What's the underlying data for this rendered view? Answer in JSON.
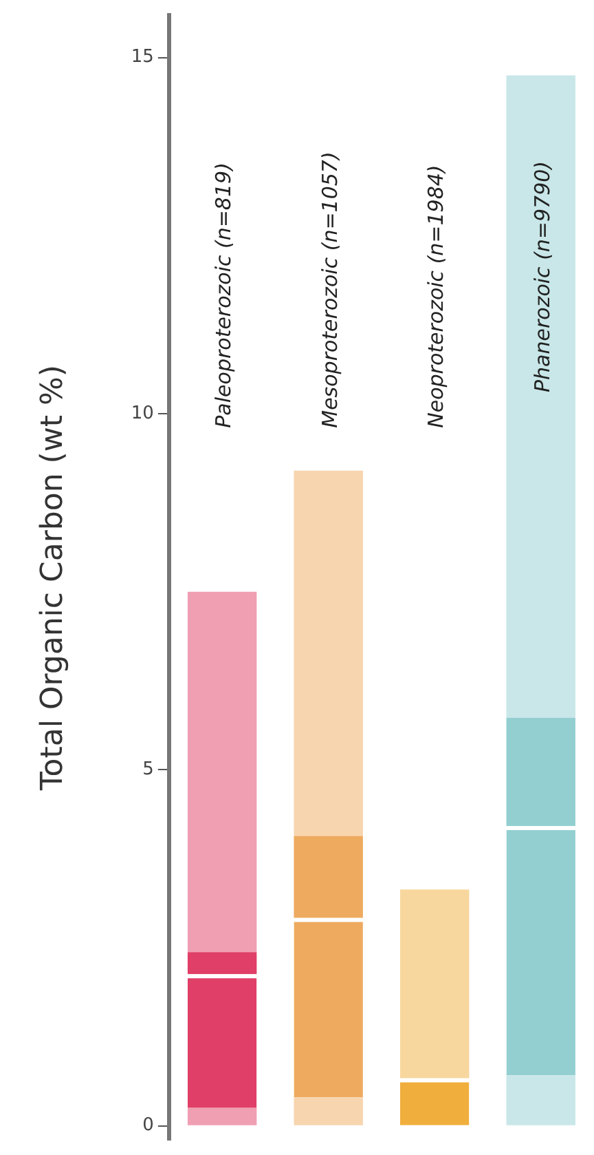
{
  "chart_data": {
    "type": "bar",
    "stacked": true,
    "ylabel": "Total Organic Carbon (wt %)",
    "categories": [
      "Paleoproterozoic (n=819)",
      "Mesoproterozoic (n=1057)",
      "Neoproterozoic (n=1984)",
      "Phanerozoic (n=9790)"
    ],
    "series": [
      {
        "colors": [
          "#f09fb3",
          "#f7d5af",
          "#f8d79e",
          "#c9e7e8"
        ],
        "values": [
          0.25,
          0.4,
          0,
          0.71
        ]
      },
      {
        "colors": [
          "#e03f67",
          "#eeaa5e",
          "#f0ae3c",
          "#93cfd1"
        ],
        "values": [
          1.88,
          2.52,
          0.67,
          3.5
        ]
      },
      {
        "colors": [
          "#e03f67",
          "#eeaa5e",
          "#f0ae3c",
          "#93cfd1"
        ],
        "values": [
          0.31,
          1.15,
          0,
          1.52
        ]
      },
      {
        "colors": [
          "#f09fb3",
          "#f7d5af",
          "#f8d79e",
          "#c9e7e8"
        ],
        "values": [
          5.06,
          5.13,
          2.65,
          9.02
        ]
      }
    ],
    "ylim": [
      -0.2,
      15.6
    ],
    "yticks": [
      0,
      5,
      10,
      15
    ],
    "grid": false,
    "legend": false,
    "tick_labels": "y"
  }
}
